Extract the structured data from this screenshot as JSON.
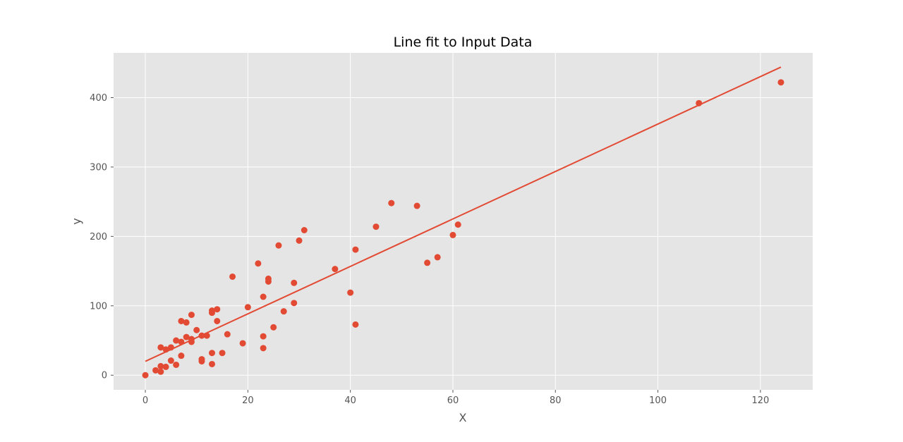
{
  "chart_data": {
    "type": "scatter",
    "title": "Line fit to Input Data",
    "xlabel": "X",
    "ylabel": "y",
    "xlim": [
      -6.2,
      130.2
    ],
    "ylim": [
      -21.1,
      464.5
    ],
    "xticks": [
      0,
      20,
      40,
      60,
      80,
      100,
      120
    ],
    "yticks": [
      0,
      100,
      200,
      300,
      400
    ],
    "xtick_labels": [
      "0",
      "20",
      "40",
      "60",
      "80",
      "100",
      "120"
    ],
    "ytick_labels": [
      "0",
      "100",
      "200",
      "300",
      "400"
    ],
    "grid": true,
    "style": "ggplot",
    "colors": {
      "background": "#e5e5e5",
      "grid": "#ffffff",
      "points": "#e24a33",
      "fit_line": "#e24a33"
    },
    "series": [
      {
        "kind": "points",
        "points": [
          [
            0,
            0
          ],
          [
            2,
            7
          ],
          [
            3,
            5
          ],
          [
            3,
            13
          ],
          [
            3,
            40
          ],
          [
            4,
            12
          ],
          [
            4,
            37
          ],
          [
            5,
            21
          ],
          [
            5,
            40
          ],
          [
            6,
            15
          ],
          [
            6,
            50
          ],
          [
            7,
            28
          ],
          [
            7,
            48
          ],
          [
            7,
            78
          ],
          [
            8,
            55
          ],
          [
            8,
            76
          ],
          [
            9,
            48
          ],
          [
            9,
            52
          ],
          [
            9,
            87
          ],
          [
            10,
            65
          ],
          [
            11,
            20
          ],
          [
            11,
            23
          ],
          [
            11,
            57
          ],
          [
            12,
            57
          ],
          [
            13,
            16
          ],
          [
            13,
            32
          ],
          [
            13,
            90
          ],
          [
            13,
            93
          ],
          [
            14,
            78
          ],
          [
            14,
            95
          ],
          [
            15,
            32
          ],
          [
            16,
            59
          ],
          [
            17,
            142
          ],
          [
            19,
            46
          ],
          [
            20,
            98
          ],
          [
            22,
            161
          ],
          [
            23,
            39
          ],
          [
            23,
            56
          ],
          [
            23,
            113
          ],
          [
            24,
            135
          ],
          [
            24,
            139
          ],
          [
            25,
            69
          ],
          [
            26,
            187
          ],
          [
            27,
            92
          ],
          [
            29,
            104
          ],
          [
            29,
            133
          ],
          [
            30,
            194
          ],
          [
            31,
            209
          ],
          [
            37,
            153
          ],
          [
            40,
            119
          ],
          [
            41,
            73
          ],
          [
            41,
            181
          ],
          [
            45,
            214
          ],
          [
            48,
            248
          ],
          [
            53,
            244
          ],
          [
            55,
            162
          ],
          [
            57,
            170
          ],
          [
            60,
            202
          ],
          [
            61,
            217
          ],
          [
            108,
            392
          ],
          [
            124,
            422
          ]
        ]
      },
      {
        "kind": "line",
        "x": [
          0,
          124
        ],
        "y": [
          20,
          444
        ]
      }
    ]
  }
}
